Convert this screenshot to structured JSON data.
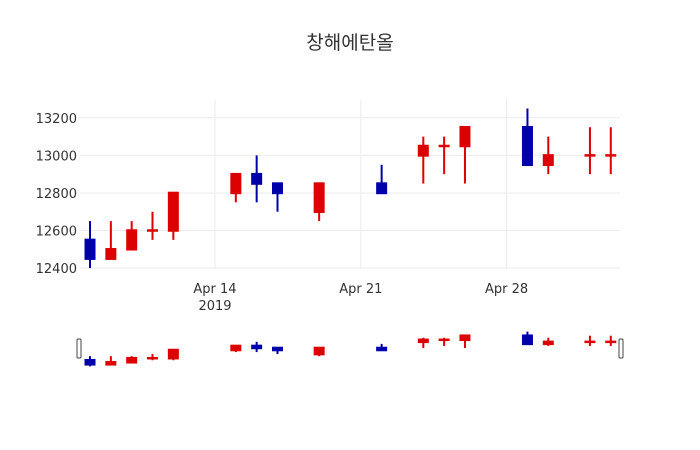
{
  "chart_data": {
    "type": "candlestick",
    "title": "창해에탄올",
    "xlabel": "",
    "ylabel": "",
    "ylim": [
      12395,
      13295
    ],
    "yticks": [
      12400,
      12600,
      12800,
      13000,
      13200
    ],
    "xticks": [
      {
        "date": "2019-04-14",
        "label": "Apr 14",
        "sublabel": "2019"
      },
      {
        "date": "2019-04-21",
        "label": "Apr 21"
      },
      {
        "date": "2019-04-28",
        "label": "Apr 28"
      }
    ],
    "increasing_color": "#dd0000",
    "decreasing_color": "#0000aa",
    "grid": true,
    "rangeslider": true,
    "candles": [
      {
        "date": "2019-04-08",
        "open": 12550,
        "high": 12650,
        "low": 12400,
        "close": 12450
      },
      {
        "date": "2019-04-09",
        "open": 12450,
        "high": 12650,
        "low": 12450,
        "close": 12500
      },
      {
        "date": "2019-04-10",
        "open": 12500,
        "high": 12650,
        "low": 12500,
        "close": 12600
      },
      {
        "date": "2019-04-11",
        "open": 12600,
        "high": 12700,
        "low": 12550,
        "close": 12600
      },
      {
        "date": "2019-04-12",
        "open": 12600,
        "high": 12800,
        "low": 12550,
        "close": 12800
      },
      {
        "date": "2019-04-15",
        "open": 12800,
        "high": 12900,
        "low": 12750,
        "close": 12900
      },
      {
        "date": "2019-04-16",
        "open": 12900,
        "high": 13000,
        "low": 12750,
        "close": 12850
      },
      {
        "date": "2019-04-17",
        "open": 12850,
        "high": 12850,
        "low": 12700,
        "close": 12800
      },
      {
        "date": "2019-04-19",
        "open": 12700,
        "high": 12850,
        "low": 12650,
        "close": 12850
      },
      {
        "date": "2019-04-22",
        "open": 12850,
        "high": 12950,
        "low": 12800,
        "close": 12800
      },
      {
        "date": "2019-04-24",
        "open": 13000,
        "high": 13100,
        "low": 12850,
        "close": 13050
      },
      {
        "date": "2019-04-25",
        "open": 13050,
        "high": 13100,
        "low": 12900,
        "close": 13050
      },
      {
        "date": "2019-04-26",
        "open": 13050,
        "high": 13150,
        "low": 12850,
        "close": 13150
      },
      {
        "date": "2019-04-29",
        "open": 13150,
        "high": 13250,
        "low": 12950,
        "close": 12950
      },
      {
        "date": "2019-04-30",
        "open": 12950,
        "high": 13100,
        "low": 12900,
        "close": 13000
      },
      {
        "date": "2019-05-02",
        "open": 13000,
        "high": 13150,
        "low": 12900,
        "close": 13000
      },
      {
        "date": "2019-05-03",
        "open": 13000,
        "high": 13150,
        "low": 12900,
        "close": 13000
      }
    ]
  },
  "title": "창해에탄올"
}
